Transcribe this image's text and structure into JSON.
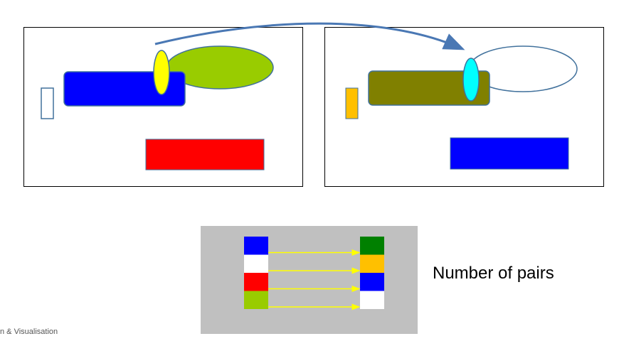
{
  "slide": {
    "pairs_label": "Number of pairs",
    "footer_text": "n & Visualisation"
  },
  "colors": {
    "blue": "#0000ff",
    "yellow": "#ffff00",
    "yellow_green": "#99cc00",
    "red": "#ff0000",
    "olive": "#808000",
    "cyan": "#00ffff",
    "amber": "#ffc000",
    "dark_green": "#008000",
    "outline": "#41719c",
    "arrow": "#4a78b4",
    "gray_panel": "#c0c0c0"
  },
  "color_pairs": [
    {
      "left": "#0000ff",
      "right": "#008000"
    },
    {
      "left": "#ffffff",
      "right": "#ffc000"
    },
    {
      "left": "#ff0000",
      "right": "#0000ff"
    },
    {
      "left": "#99cc00",
      "right": "#ffffff"
    }
  ]
}
